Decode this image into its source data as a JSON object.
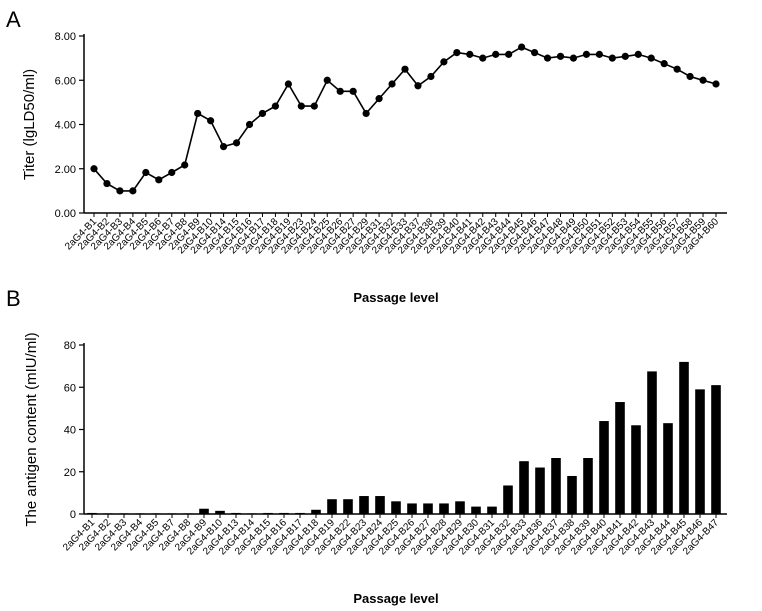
{
  "chart_data": [
    {
      "type": "line",
      "panel_label": "A",
      "title": "",
      "ylabel": "Titer (lgLD50/ml)",
      "xlabel": "Passage level",
      "ylim": [
        0,
        8
      ],
      "yticks": [
        "0.00",
        "2.00",
        "4.00",
        "6.00",
        "8.00"
      ],
      "grid": false,
      "marker": "circle",
      "color": "#000000",
      "categories": [
        "2aG4-B1",
        "2aG4-B2",
        "2aG4-B3",
        "2aG4-B4",
        "2aG4-B5",
        "2aG4-B6",
        "2aG4-B7",
        "2aG4-B8",
        "2aG4-B9",
        "2aG4-B10",
        "2aG4-B14",
        "2aG4-B15",
        "2aG4-B16",
        "2aG4-B17",
        "2aG4-B18",
        "2aG4-B19",
        "2aG4-B23",
        "2aG4-B24",
        "2aG4-B25",
        "2aG4-B26",
        "2aG4-B27",
        "2aG4-B29",
        "2aG4-B31",
        "2aG4-B32",
        "2aG4-B33",
        "2aG4-B37",
        "2aG4-B38",
        "2aG4-B39",
        "2aG4-B40",
        "2aG4-B41",
        "2aG4-B42",
        "2aG4-B43",
        "2aG4-B44",
        "2aG4-B45",
        "2aG4-B46",
        "2aG4-B47",
        "2aG4-B48",
        "2aG4-B49",
        "2aG4-B50",
        "2aG4-B51",
        "2aG4-B52",
        "2aG4-B53",
        "2aG4-B54",
        "2aG4-B55",
        "2aG4-B56",
        "2aG4-B57",
        "2aG4-B58",
        "2aG4-B59",
        "2aG4-B60"
      ],
      "values": [
        2.0,
        1.33,
        1.0,
        1.0,
        1.83,
        1.5,
        1.83,
        2.17,
        4.5,
        4.17,
        3.0,
        3.17,
        4.0,
        4.5,
        4.83,
        5.83,
        4.83,
        4.83,
        6.0,
        5.5,
        5.5,
        4.5,
        5.17,
        5.83,
        6.5,
        5.75,
        6.17,
        6.83,
        7.25,
        7.17,
        7.0,
        7.17,
        7.17,
        7.5,
        7.25,
        7.0,
        7.08,
        7.0,
        7.17,
        7.17,
        7.0,
        7.08,
        7.17,
        7.0,
        6.75,
        6.5,
        6.17,
        6.0,
        5.83
      ]
    },
    {
      "type": "bar",
      "panel_label": "B",
      "title": "",
      "ylabel": "The antigen content (mIU/ml)",
      "xlabel": "Passage level",
      "ylim": [
        0,
        80
      ],
      "yticks": [
        "0",
        "20",
        "40",
        "60",
        "80"
      ],
      "grid": false,
      "color": "#000000",
      "categories": [
        "2aG4-B1",
        "2aG4-B2",
        "2aG4-B3",
        "2aG4-B4",
        "2aG4-B5",
        "2aG4-B7",
        "2aG4-B8",
        "2aG4-B9",
        "2aG4-B10",
        "2aG4-B13",
        "2aG4-B14",
        "2aG4-B15",
        "2aG4-B16",
        "2aG4-B17",
        "2aG4-B18",
        "2aG4-B19",
        "2aG4-B22",
        "2aG4-B23",
        "2aG4-B24",
        "2aG4-B25",
        "2aG4-B26",
        "2aG4-B27",
        "2aG4-B28",
        "2aG4-B29",
        "2aG4-B30",
        "2aG4-B31",
        "2aG4-B32",
        "2aG4-B33",
        "2aG4-B36",
        "2aG4-B37",
        "2aG4-B38",
        "2aG4-B39",
        "2aG4-B40",
        "2aG4-B41",
        "2aG4-B42",
        "2aG4-B43",
        "2aG4-B44",
        "2aG4-B45",
        "2aG4-B46",
        "2aG4-B47"
      ],
      "values": [
        0.5,
        0.3,
        0.3,
        0.3,
        0.3,
        0.3,
        0.3,
        2.5,
        1.5,
        0.5,
        0.3,
        0.5,
        0.5,
        0.5,
        2.0,
        7.0,
        7.0,
        8.5,
        8.5,
        6.0,
        5.0,
        5.0,
        5.0,
        6.0,
        3.5,
        3.5,
        13.5,
        25.0,
        22.0,
        26.5,
        18.0,
        26.5,
        44.0,
        53.0,
        42.0,
        67.5,
        43.0,
        72.0,
        59.0,
        61.0
      ]
    }
  ]
}
